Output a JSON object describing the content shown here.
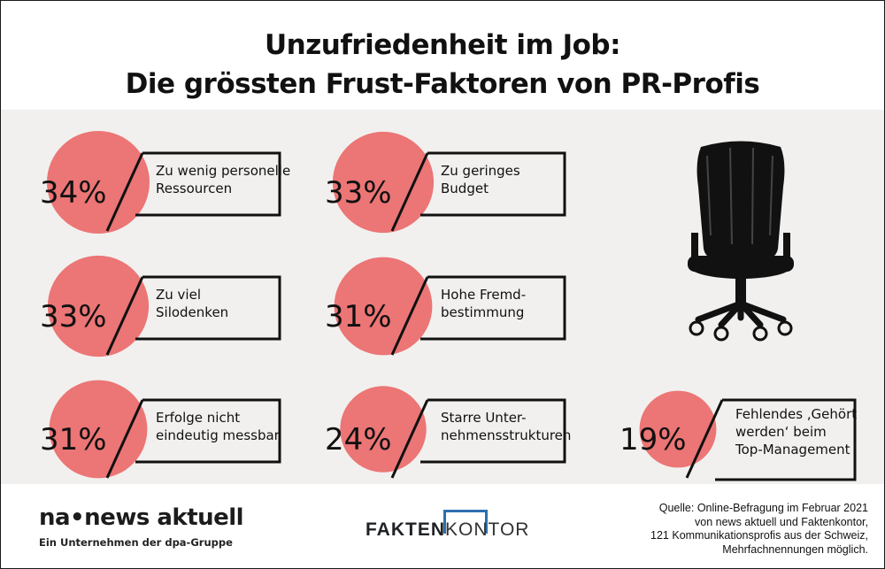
{
  "title": {
    "line1": "Unzufriedenheit im Job:",
    "line2": "Die grössten Frust-Faktoren von PR-Profis"
  },
  "chart_data": {
    "type": "bubble",
    "title": "Unzufriedenheit im Job: Die grössten Frust-Faktoren von PR-Profis",
    "unit": "%",
    "items": [
      {
        "value": 34,
        "value_label": "34%",
        "label_lines": [
          "Zu wenig personelle",
          "Ressourcen"
        ]
      },
      {
        "value": 33,
        "value_label": "33%",
        "label_lines": [
          "Zu geringes",
          "Budget"
        ]
      },
      {
        "value": 33,
        "value_label": "33%",
        "label_lines": [
          "Zu viel",
          "Silodenken"
        ]
      },
      {
        "value": 31,
        "value_label": "31%",
        "label_lines": [
          "Hohe Fremd-",
          "bestimmung"
        ]
      },
      {
        "value": 31,
        "value_label": "31%",
        "label_lines": [
          "Erfolge nicht",
          "eindeutig messbar"
        ]
      },
      {
        "value": 24,
        "value_label": "24%",
        "label_lines": [
          "Starre Unter-",
          "nehmensstrukturen"
        ]
      },
      {
        "value": 19,
        "value_label": "19%",
        "label_lines": [
          "Fehlendes ‚Gehört",
          "werden‘ beim",
          "Top-Management"
        ]
      }
    ],
    "colors": {
      "bubble": "#ec7575",
      "text": "#111111"
    }
  },
  "footer": {
    "brand": "na•news aktuell",
    "brand_sub": "Ein Unternehmen der dpa-Gruppe",
    "partner_a": "FAKTEN",
    "partner_b": "KONTOR",
    "source_lines": [
      "Quelle: Online-Befragung im Februar 2021",
      "von news aktuell und Faktenkontor,",
      "121 Kommunikationsprofis aus der Schweiz,",
      "Mehrfachnennungen möglich."
    ]
  },
  "illustration": {
    "icon": "office-chair-icon"
  }
}
